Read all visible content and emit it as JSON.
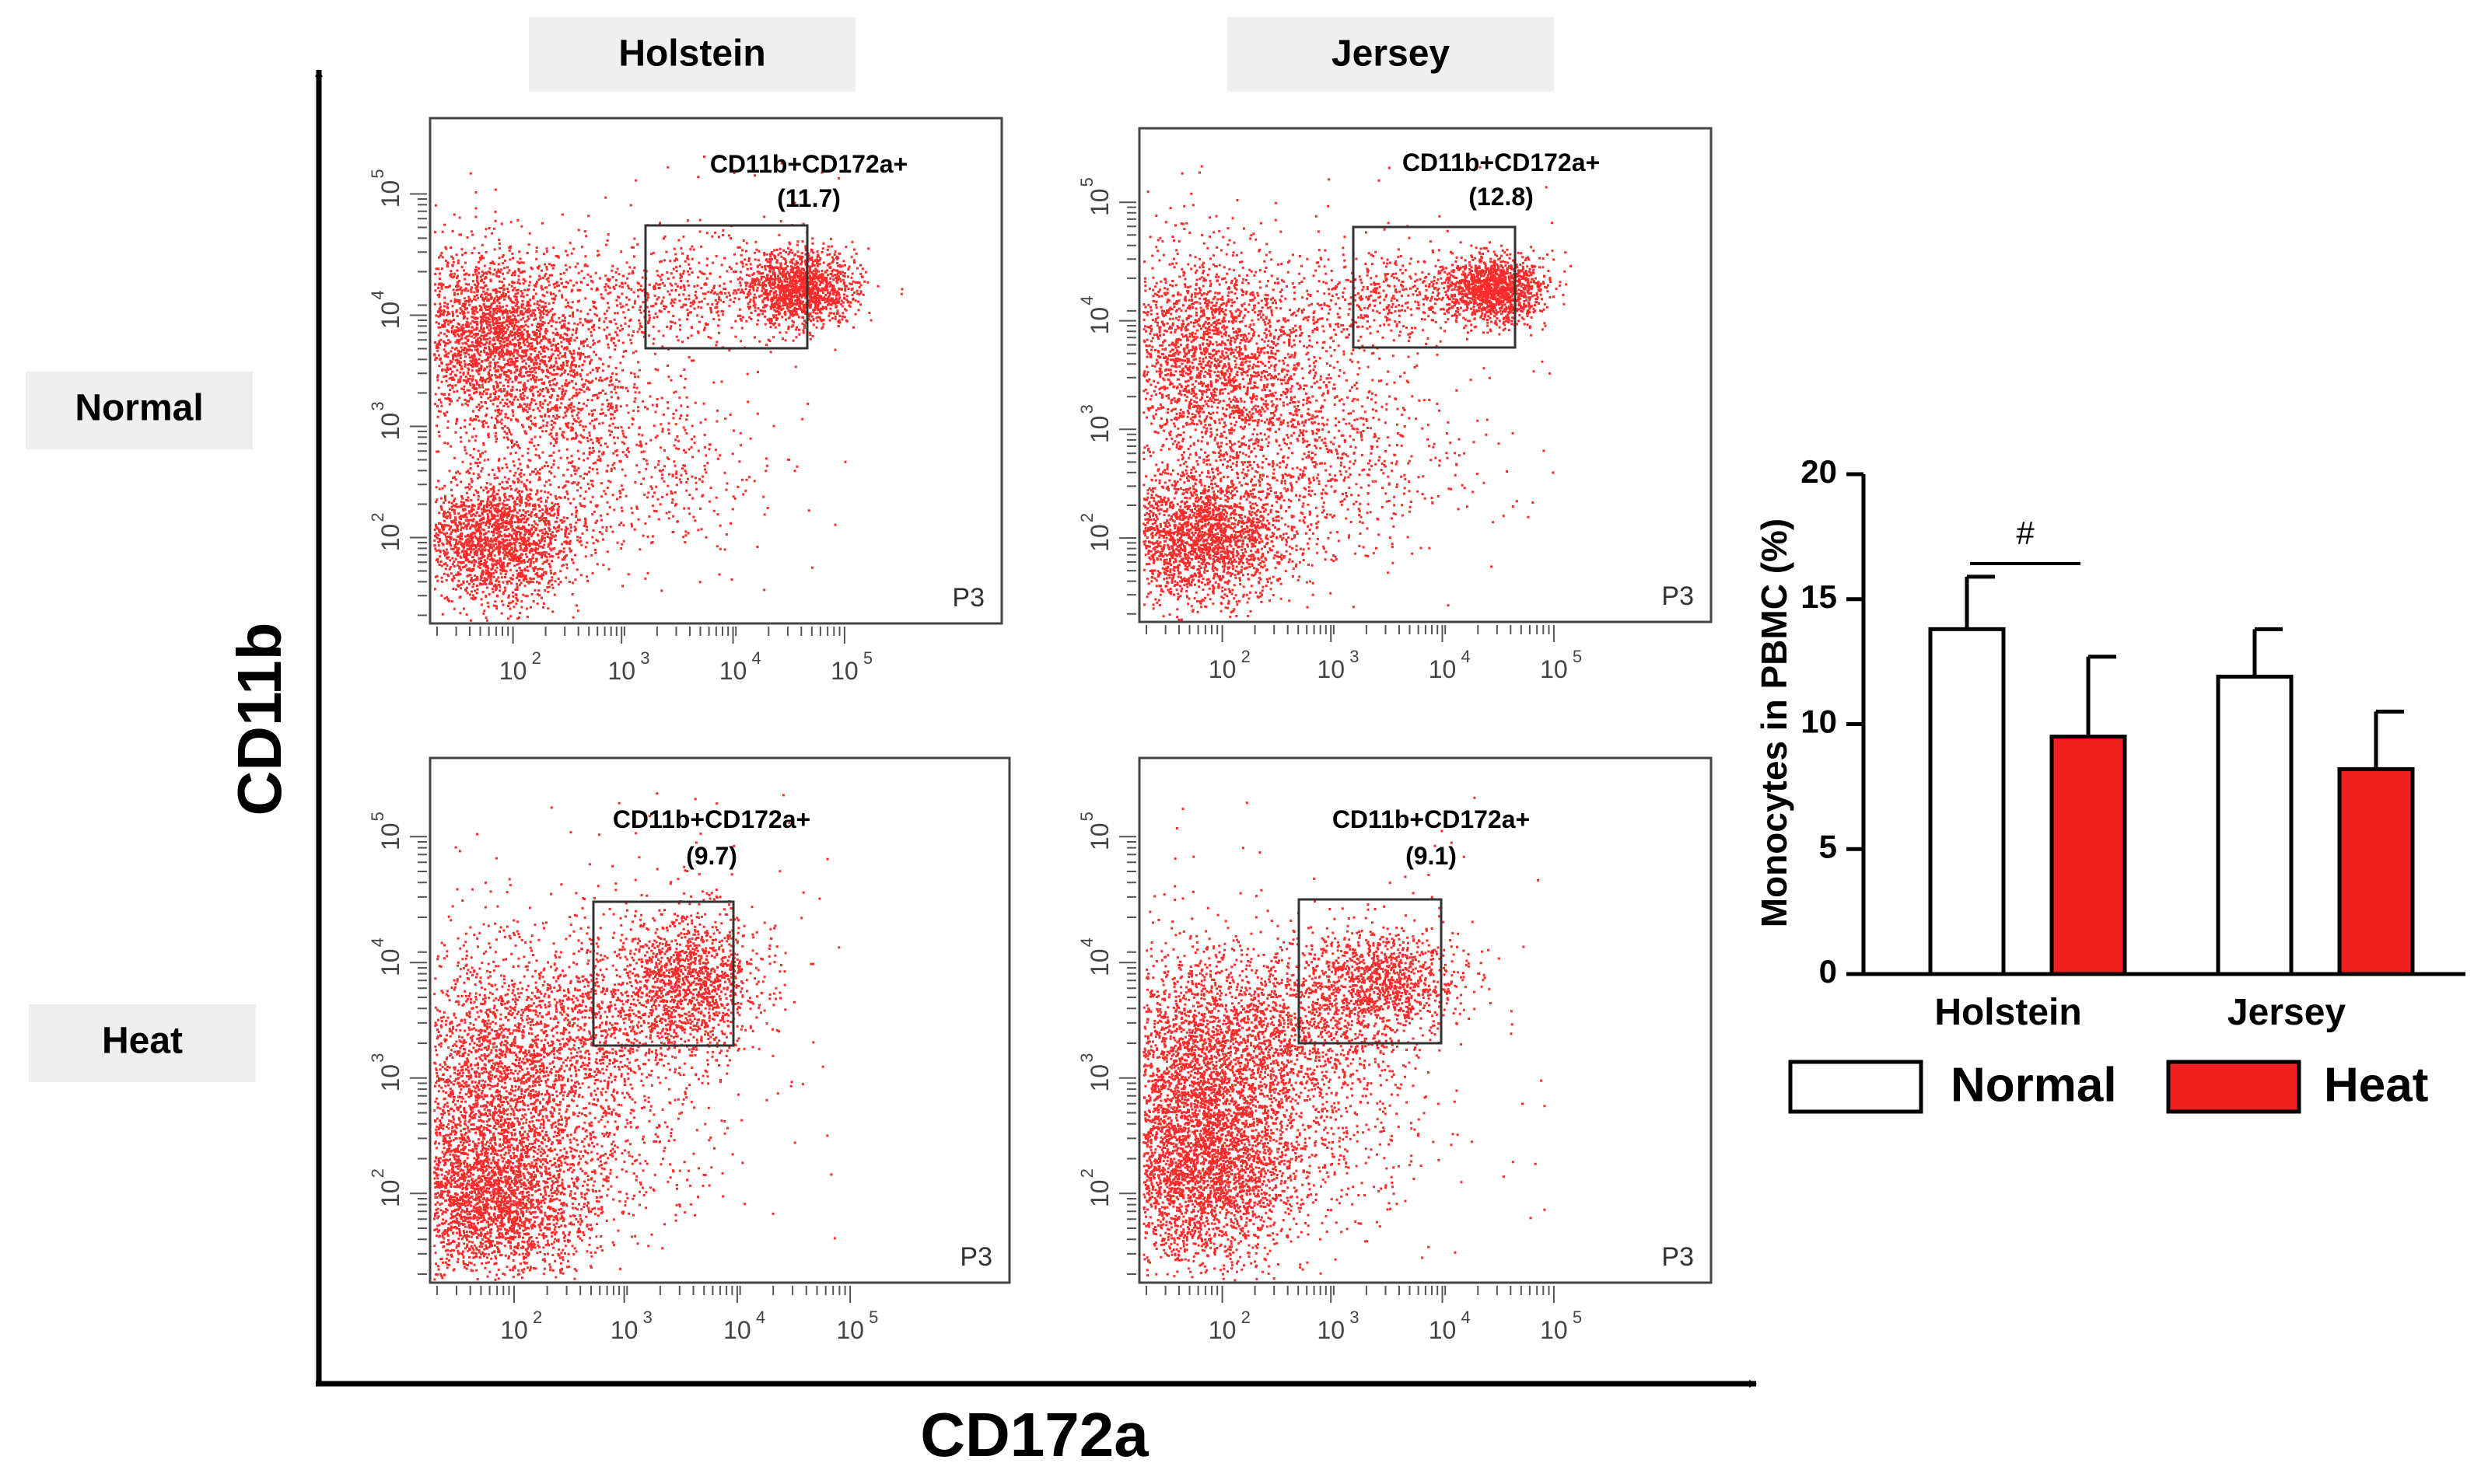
{
  "colors": {
    "dot": "#ff2a2a",
    "heat_bar": "#ee2020",
    "label_box": "#efefef",
    "ink": "#000000"
  },
  "labels": {
    "breeds": [
      "Holstein",
      "Jersey"
    ],
    "conditions": [
      "Normal",
      "Heat"
    ],
    "x_axis": "CD172a",
    "y_axis": "CD11b"
  },
  "flow_ticks": [
    "2",
    "3",
    "4",
    "5"
  ],
  "panels": [
    {
      "breed": "Holstein",
      "condition": "Normal",
      "gate_label": "CD11b+CD172a+",
      "gate_value": "(11.7)",
      "gate_name": "P3"
    },
    {
      "breed": "Jersey",
      "condition": "Normal",
      "gate_label": "CD11b+CD172a+",
      "gate_value": "(12.8)",
      "gate_name": "P3"
    },
    {
      "breed": "Holstein",
      "condition": "Heat",
      "gate_label": "CD11b+CD172a+",
      "gate_value": "(9.7)",
      "gate_name": "P3"
    },
    {
      "breed": "Jersey",
      "condition": "Heat",
      "gate_label": "CD11b+CD172a+",
      "gate_value": "(9.1)",
      "gate_name": "P3"
    }
  ],
  "chart_data": {
    "type": "bar",
    "categories": [
      "Holstein",
      "Jersey"
    ],
    "series": [
      {
        "name": "Normal",
        "values": [
          13.8,
          11.9
        ],
        "errors": [
          2.1,
          1.9
        ]
      },
      {
        "name": "Heat",
        "values": [
          9.5,
          8.2
        ],
        "errors": [
          3.2,
          2.3
        ]
      }
    ],
    "ylabel": "Monocytes in PBMC (%)",
    "ylim": [
      0,
      20
    ],
    "yticks": [
      "0",
      "5",
      "10",
      "15",
      "20"
    ],
    "annotation": "#",
    "legend": [
      "Normal",
      "Heat"
    ]
  }
}
